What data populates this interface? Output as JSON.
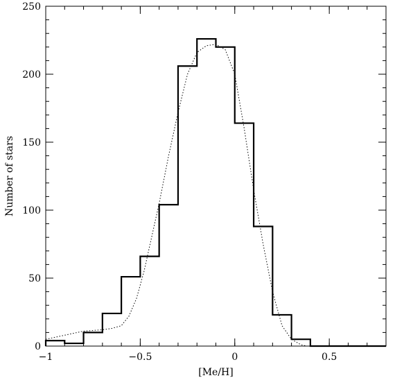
{
  "chart_data": {
    "type": "histogram",
    "title": "",
    "xlabel": "[Me/H]",
    "ylabel": "Number of stars",
    "xlim": [
      -1,
      0.8
    ],
    "ylim": [
      0,
      250
    ],
    "x_ticks": [
      {
        "value": -1,
        "label": "−1"
      },
      {
        "value": -0.5,
        "label": "−0.5"
      },
      {
        "value": 0,
        "label": "0"
      },
      {
        "value": 0.5,
        "label": "0.5"
      }
    ],
    "y_ticks": [
      {
        "value": 0,
        "label": "0"
      },
      {
        "value": 50,
        "label": "50"
      },
      {
        "value": 100,
        "label": "100"
      },
      {
        "value": 150,
        "label": "150"
      },
      {
        "value": 200,
        "label": "200"
      },
      {
        "value": 250,
        "label": "250"
      }
    ],
    "x_minor_step": 0.1,
    "y_minor_step": 10,
    "histogram": {
      "bin_edges": [
        -1.0,
        -0.9,
        -0.8,
        -0.7,
        -0.6,
        -0.5,
        -0.4,
        -0.3,
        -0.2,
        -0.1,
        0.0,
        0.1,
        0.2,
        0.3,
        0.4,
        0.5,
        0.6,
        0.7,
        0.8
      ],
      "counts": [
        4,
        2,
        10,
        24,
        51,
        66,
        104,
        206,
        226,
        220,
        164,
        88,
        23,
        5,
        0,
        0,
        0,
        0
      ]
    },
    "fit_curve": {
      "style": "dotted",
      "x": [
        -1.0,
        -0.9,
        -0.8,
        -0.7,
        -0.65,
        -0.6,
        -0.56,
        -0.52,
        -0.48,
        -0.44,
        -0.4,
        -0.35,
        -0.3,
        -0.25,
        -0.2,
        -0.15,
        -0.1,
        -0.05,
        0.0,
        0.05,
        0.1,
        0.15,
        0.2,
        0.25,
        0.3,
        0.35,
        0.38,
        0.4,
        0.5,
        0.6,
        0.8
      ],
      "y": [
        5,
        8,
        11,
        12,
        13,
        15,
        22,
        35,
        55,
        80,
        105,
        140,
        172,
        200,
        216,
        221,
        222,
        218,
        200,
        160,
        115,
        75,
        40,
        15,
        5,
        1,
        0,
        0,
        0,
        0,
        0
      ]
    }
  }
}
